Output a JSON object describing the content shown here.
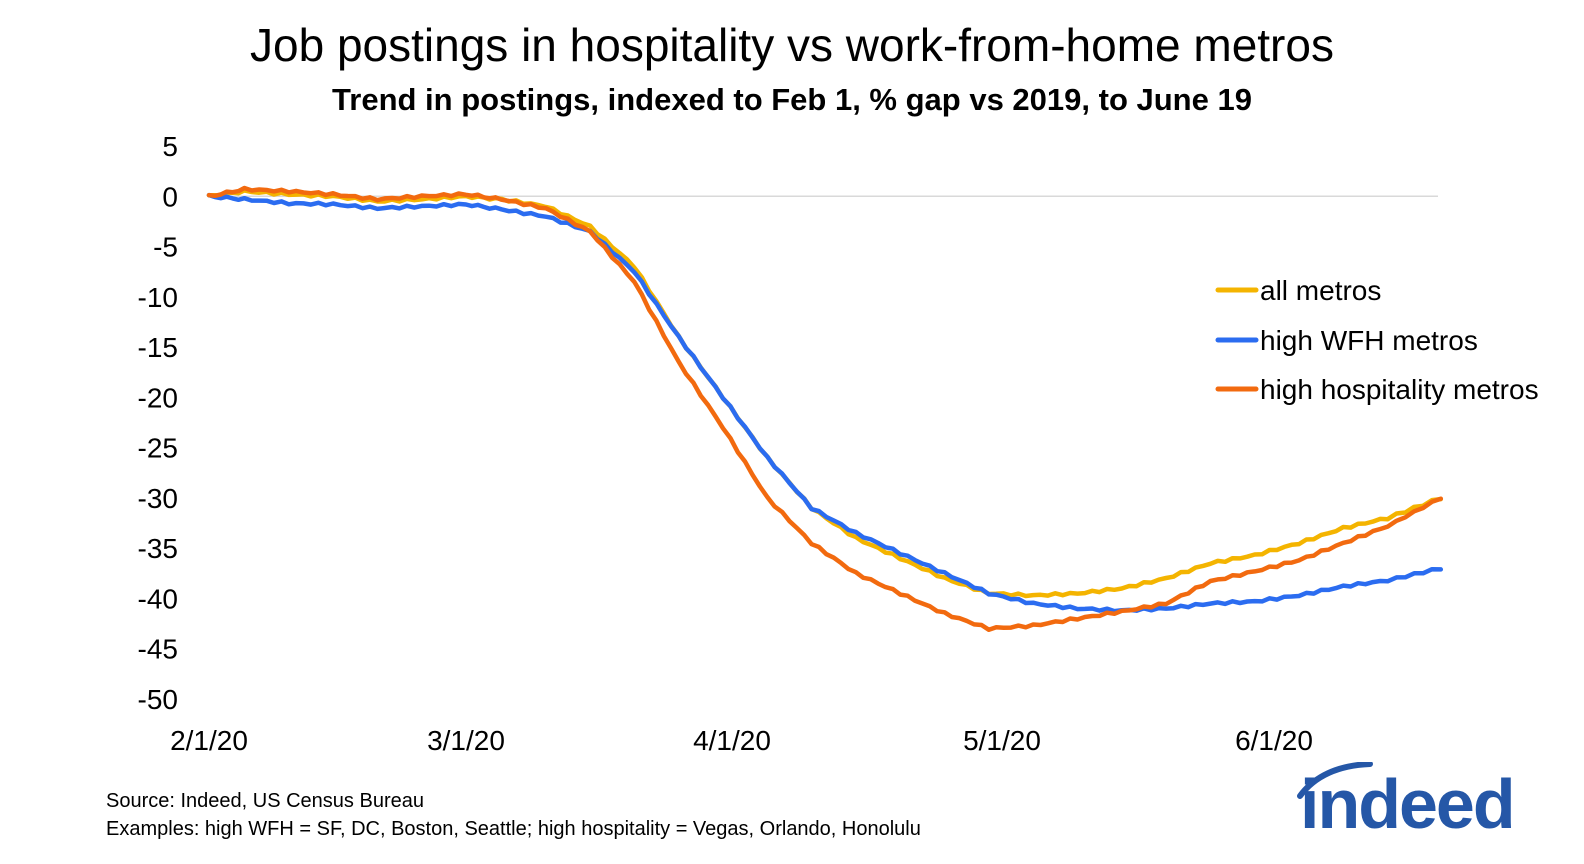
{
  "title": "Job postings in hospitality vs work-from-home metros",
  "subtitle": "Trend in postings, indexed to Feb 1, % gap vs 2019, to June 19",
  "footnotes": [
    "Source: Indeed, US Census Bureau",
    "Examples: high WFH = SF, DC, Boston, Seattle; high hospitality = Vegas, Orlando, Honolulu"
  ],
  "logo_text": "indeed",
  "colors": {
    "all": "#f4b400",
    "wfh": "#2b6cf0",
    "hosp": "#f26a0f",
    "logo": "#2557a7",
    "grid": "#d9d9d9"
  },
  "chart_data": {
    "type": "line",
    "title": "Job postings in hospitality vs work-from-home metros",
    "subtitle": "Trend in postings, indexed to Feb 1, % gap vs 2019, to June 19",
    "x_start": "2020-02-01",
    "x_end": "2020-06-19",
    "xticks": [
      "2/1/20",
      "3/1/20",
      "4/1/20",
      "5/1/20",
      "6/1/20"
    ],
    "ylim": [
      -50,
      5
    ],
    "yticks": [
      5,
      0,
      -5,
      -10,
      -15,
      -20,
      -25,
      -30,
      -35,
      -40,
      -45,
      -50
    ],
    "gridlines": [
      0
    ],
    "legend_position": "right",
    "series": [
      {
        "name": "all metros",
        "color": "#f4b400",
        "points": [
          [
            "2020-02-01",
            0
          ],
          [
            "2020-02-05",
            0.5
          ],
          [
            "2020-02-10",
            0.2
          ],
          [
            "2020-02-15",
            0
          ],
          [
            "2020-02-20",
            -0.5
          ],
          [
            "2020-02-25",
            -0.3
          ],
          [
            "2020-03-01",
            0
          ],
          [
            "2020-03-05",
            -0.3
          ],
          [
            "2020-03-10",
            -1
          ],
          [
            "2020-03-15",
            -3
          ],
          [
            "2020-03-20",
            -7
          ],
          [
            "2020-03-25",
            -14
          ],
          [
            "2020-03-30",
            -20
          ],
          [
            "2020-04-04",
            -26
          ],
          [
            "2020-04-09",
            -31
          ],
          [
            "2020-04-14",
            -34
          ],
          [
            "2020-04-19",
            -36
          ],
          [
            "2020-04-24",
            -38
          ],
          [
            "2020-04-29",
            -39.5
          ],
          [
            "2020-05-04",
            -39.7
          ],
          [
            "2020-05-09",
            -39.5
          ],
          [
            "2020-05-14",
            -39
          ],
          [
            "2020-05-19",
            -38
          ],
          [
            "2020-05-24",
            -36.5
          ],
          [
            "2020-05-29",
            -35.7
          ],
          [
            "2020-06-03",
            -34.5
          ],
          [
            "2020-06-08",
            -33
          ],
          [
            "2020-06-13",
            -32
          ],
          [
            "2020-06-19",
            -30
          ]
        ]
      },
      {
        "name": "high WFH metros",
        "color": "#2b6cf0",
        "points": [
          [
            "2020-02-01",
            0
          ],
          [
            "2020-02-05",
            -0.3
          ],
          [
            "2020-02-10",
            -0.7
          ],
          [
            "2020-02-15",
            -0.8
          ],
          [
            "2020-02-20",
            -1.2
          ],
          [
            "2020-02-25",
            -1
          ],
          [
            "2020-03-01",
            -0.8
          ],
          [
            "2020-03-05",
            -1.3
          ],
          [
            "2020-03-10",
            -2
          ],
          [
            "2020-03-15",
            -3.5
          ],
          [
            "2020-03-20",
            -7.5
          ],
          [
            "2020-03-25",
            -14
          ],
          [
            "2020-03-30",
            -20
          ],
          [
            "2020-04-04",
            -26
          ],
          [
            "2020-04-09",
            -31
          ],
          [
            "2020-04-14",
            -33.5
          ],
          [
            "2020-04-19",
            -35.5
          ],
          [
            "2020-04-24",
            -37.5
          ],
          [
            "2020-04-29",
            -39.5
          ],
          [
            "2020-05-04",
            -40.5
          ],
          [
            "2020-05-09",
            -41
          ],
          [
            "2020-05-14",
            -41.2
          ],
          [
            "2020-05-19",
            -41
          ],
          [
            "2020-05-24",
            -40.5
          ],
          [
            "2020-05-29",
            -40.3
          ],
          [
            "2020-06-03",
            -39.7
          ],
          [
            "2020-06-08",
            -38.8
          ],
          [
            "2020-06-13",
            -38.2
          ],
          [
            "2020-06-19",
            -37
          ]
        ]
      },
      {
        "name": "high hospitality metros",
        "color": "#f26a0f",
        "points": [
          [
            "2020-02-01",
            0
          ],
          [
            "2020-02-05",
            0.7
          ],
          [
            "2020-02-10",
            0.5
          ],
          [
            "2020-02-15",
            0.2
          ],
          [
            "2020-02-20",
            -0.3
          ],
          [
            "2020-02-25",
            0
          ],
          [
            "2020-03-01",
            0.2
          ],
          [
            "2020-03-05",
            -0.3
          ],
          [
            "2020-03-10",
            -1.2
          ],
          [
            "2020-03-15",
            -3.5
          ],
          [
            "2020-03-20",
            -8.5
          ],
          [
            "2020-03-25",
            -16.5
          ],
          [
            "2020-03-30",
            -23
          ],
          [
            "2020-04-04",
            -30
          ],
          [
            "2020-04-09",
            -34.5
          ],
          [
            "2020-04-14",
            -37.5
          ],
          [
            "2020-04-19",
            -39.5
          ],
          [
            "2020-04-24",
            -41.5
          ],
          [
            "2020-04-29",
            -43
          ],
          [
            "2020-05-04",
            -42.7
          ],
          [
            "2020-05-09",
            -42
          ],
          [
            "2020-05-14",
            -41.3
          ],
          [
            "2020-05-19",
            -40.5
          ],
          [
            "2020-05-24",
            -38.3
          ],
          [
            "2020-05-29",
            -37.3
          ],
          [
            "2020-06-03",
            -36.2
          ],
          [
            "2020-06-08",
            -34.5
          ],
          [
            "2020-06-13",
            -32.8
          ],
          [
            "2020-06-19",
            -30
          ]
        ]
      }
    ]
  }
}
